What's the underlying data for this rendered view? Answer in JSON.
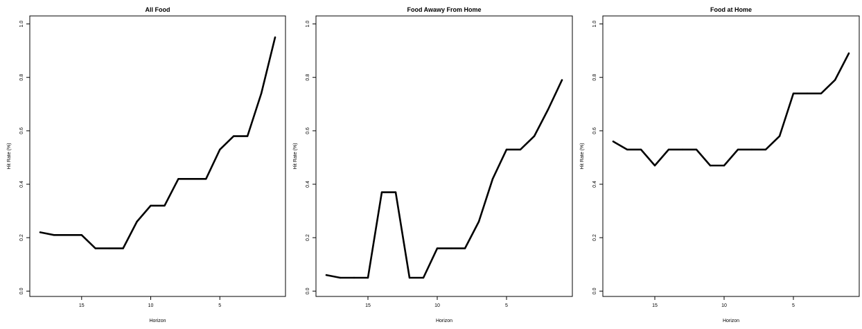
{
  "chart_data": [
    {
      "type": "line",
      "title": "All Food",
      "xlabel": "Horizon",
      "ylabel": "Hit Rate (%)",
      "x": [
        18,
        17,
        16,
        15,
        14,
        13,
        12,
        11,
        10,
        9,
        8,
        7,
        6,
        5,
        4,
        3,
        2,
        1
      ],
      "series": [
        {
          "values": [
            0.22,
            0.21,
            0.21,
            0.21,
            0.16,
            0.16,
            0.16,
            0.26,
            0.32,
            0.32,
            0.42,
            0.42,
            0.42,
            0.53,
            0.58,
            0.58,
            0.74,
            0.95
          ]
        }
      ],
      "xlim": [
        18.75,
        0.25
      ],
      "ylim": [
        -0.02,
        1.03
      ],
      "xticks": [
        15,
        10,
        5
      ],
      "yticks": [
        0.0,
        0.2,
        0.4,
        0.6,
        0.8,
        1.0
      ],
      "ytick_labels": [
        "0.0",
        "0.2",
        "0.4",
        "0.6",
        "0.8",
        "1.0"
      ],
      "grid": false
    },
    {
      "type": "line",
      "title": "Food Awawy From Home",
      "xlabel": "Horizon",
      "ylabel": "Hit Rate (%)",
      "x": [
        18,
        17,
        16,
        15,
        14,
        13,
        12,
        11,
        10,
        9,
        8,
        7,
        6,
        5,
        4,
        3,
        2,
        1
      ],
      "series": [
        {
          "values": [
            0.06,
            0.05,
            0.05,
            0.05,
            0.37,
            0.37,
            0.05,
            0.05,
            0.16,
            0.16,
            0.16,
            0.26,
            0.42,
            0.53,
            0.53,
            0.58,
            0.68,
            0.79
          ]
        }
      ],
      "xlim": [
        18.75,
        0.25
      ],
      "ylim": [
        -0.02,
        1.03
      ],
      "xticks": [
        15,
        10,
        5
      ],
      "yticks": [
        0.0,
        0.2,
        0.4,
        0.6,
        0.8,
        1.0
      ],
      "ytick_labels": [
        "0.0",
        "0.2",
        "0.4",
        "0.6",
        "0.8",
        "1.0"
      ],
      "grid": false
    },
    {
      "type": "line",
      "title": "Food at Home",
      "xlabel": "Horizon",
      "ylabel": "Hit Rate (%)",
      "x": [
        18,
        17,
        16,
        15,
        14,
        13,
        12,
        11,
        10,
        9,
        8,
        7,
        6,
        5,
        4,
        3,
        2,
        1
      ],
      "series": [
        {
          "values": [
            0.56,
            0.53,
            0.53,
            0.47,
            0.53,
            0.53,
            0.53,
            0.47,
            0.47,
            0.53,
            0.53,
            0.53,
            0.58,
            0.74,
            0.74,
            0.74,
            0.79,
            0.89
          ]
        }
      ],
      "xlim": [
        18.75,
        0.25
      ],
      "ylim": [
        -0.02,
        1.03
      ],
      "xticks": [
        15,
        10,
        5
      ],
      "yticks": [
        0.0,
        0.2,
        0.4,
        0.6,
        0.8,
        1.0
      ],
      "ytick_labels": [
        "0.0",
        "0.2",
        "0.4",
        "0.6",
        "0.8",
        "1.0"
      ],
      "grid": false
    }
  ],
  "colors": {
    "line": "#000000",
    "axes": "#000000",
    "background": "#ffffff"
  }
}
